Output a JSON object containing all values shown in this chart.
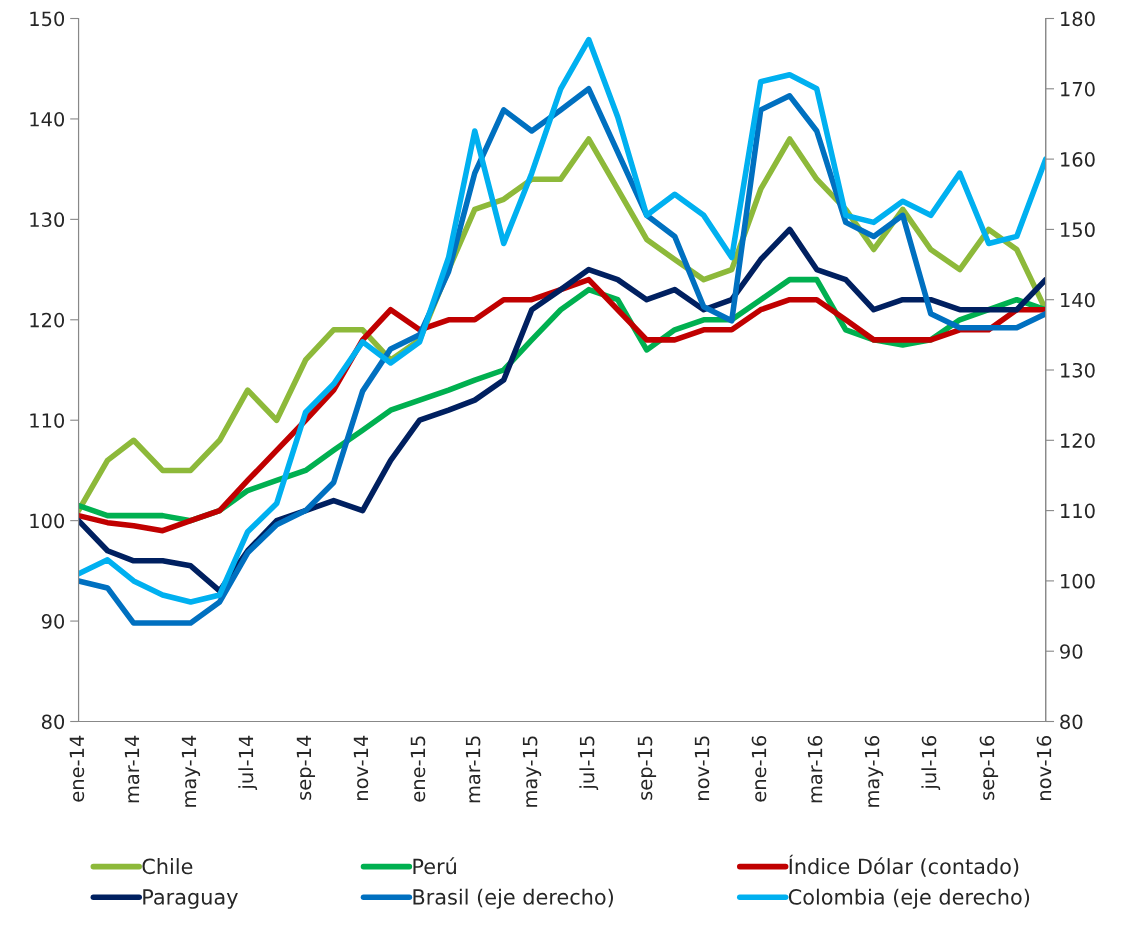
{
  "chart_data": {
    "type": "line",
    "x": [
      "2014-01",
      "2014-02",
      "2014-03",
      "2014-04",
      "2014-05",
      "2014-06",
      "2014-07",
      "2014-08",
      "2014-09",
      "2014-10",
      "2014-11",
      "2014-12",
      "2015-01",
      "2015-02",
      "2015-03",
      "2015-04",
      "2015-05",
      "2015-06",
      "2015-07",
      "2015-08",
      "2015-09",
      "2015-10",
      "2015-11",
      "2015-12",
      "2016-01",
      "2016-02",
      "2016-03",
      "2016-04",
      "2016-05",
      "2016-06",
      "2016-07",
      "2016-08",
      "2016-09",
      "2016-10",
      "2016-11"
    ],
    "series": [
      {
        "name": "Chile",
        "color": "#8db93a",
        "values": [
          101,
          106,
          108,
          105,
          105,
          108,
          113,
          110,
          116,
          119,
          119,
          116,
          118,
          125,
          131,
          132,
          134,
          134,
          138,
          133,
          128,
          126,
          124,
          125,
          133,
          138,
          134,
          131,
          127,
          131,
          127,
          125,
          129,
          127,
          121
        ]
      },
      {
        "name": "Perú",
        "color": "#00b050",
        "values": [
          101.5,
          100.5,
          100.5,
          100.5,
          100,
          101,
          103,
          104,
          105,
          107,
          109,
          111,
          112,
          113,
          114,
          115,
          118,
          121,
          123,
          122,
          117,
          119,
          120,
          120,
          122,
          124,
          124,
          119,
          118,
          117.5,
          118,
          120,
          121,
          122,
          121
        ]
      },
      {
        "name": "Índice Dólar (contado)",
        "color": "#c00000",
        "values": [
          100.5,
          99.8,
          99.5,
          99,
          100,
          101,
          104,
          107,
          110,
          113,
          118,
          121,
          119,
          120,
          120,
          122,
          122,
          123,
          124,
          121,
          118,
          118,
          119,
          119,
          121,
          122,
          122,
          120,
          118,
          118,
          118,
          119,
          119,
          121,
          121
        ]
      },
      {
        "name": "Paraguay",
        "color": "#002060",
        "values": [
          100,
          97,
          96,
          96,
          95.5,
          93,
          97,
          100,
          101,
          102,
          101,
          106,
          110,
          111,
          112,
          114,
          121,
          123,
          125,
          124,
          122,
          123,
          121,
          122,
          126,
          129,
          125,
          124,
          121,
          122,
          122,
          121,
          121,
          121,
          124
        ]
      },
      {
        "name": "Brasil (eje derecho)",
        "color": "#0070c0",
        "axis": "y2",
        "values": [
          100,
          99,
          94,
          94,
          94,
          97,
          104,
          108,
          110,
          114,
          127,
          133,
          135,
          144,
          158,
          167,
          164,
          167,
          170,
          161,
          152,
          149,
          139,
          137,
          167,
          169,
          164,
          151,
          149,
          152,
          138,
          136,
          136,
          136,
          138
        ]
      },
      {
        "name": "Colombia (eje derecho)",
        "color": "#00b0f0",
        "axis": "y2",
        "values": [
          101,
          103,
          100,
          98,
          97,
          98,
          107,
          111,
          124,
          128,
          134,
          131,
          134,
          146,
          164,
          148,
          158,
          170,
          177,
          166,
          152,
          155,
          152,
          146,
          171,
          172,
          170,
          152,
          151,
          154,
          152,
          158,
          148,
          149,
          160
        ]
      }
    ],
    "xlim": [
      "2014-01",
      "2016-11"
    ],
    "xticks": [
      {
        "value": "2014-01",
        "label": "ene-14"
      },
      {
        "value": "2014-03",
        "label": "mar-14"
      },
      {
        "value": "2014-05",
        "label": "may-14"
      },
      {
        "value": "2014-07",
        "label": "jul-14"
      },
      {
        "value": "2014-09",
        "label": "sep-14"
      },
      {
        "value": "2014-11",
        "label": "nov-14"
      },
      {
        "value": "2015-01",
        "label": "ene-15"
      },
      {
        "value": "2015-03",
        "label": "mar-15"
      },
      {
        "value": "2015-05",
        "label": "may-15"
      },
      {
        "value": "2015-07",
        "label": "jul-15"
      },
      {
        "value": "2015-09",
        "label": "sep-15"
      },
      {
        "value": "2015-11",
        "label": "nov-15"
      },
      {
        "value": "2016-01",
        "label": "ene-16"
      },
      {
        "value": "2016-03",
        "label": "mar-16"
      },
      {
        "value": "2016-05",
        "label": "may-16"
      },
      {
        "value": "2016-07",
        "label": "jul-16"
      },
      {
        "value": "2016-09",
        "label": "sep-16"
      },
      {
        "value": "2016-11",
        "label": "nov-16"
      }
    ],
    "ylim": [
      80,
      150
    ],
    "yticks": [
      80,
      90,
      100,
      110,
      120,
      130,
      140,
      150
    ],
    "y2lim": [
      80,
      180
    ],
    "y2ticks": [
      80,
      90,
      100,
      110,
      120,
      130,
      140,
      150,
      160,
      170,
      180
    ],
    "legend": "bottom",
    "grid": false
  }
}
